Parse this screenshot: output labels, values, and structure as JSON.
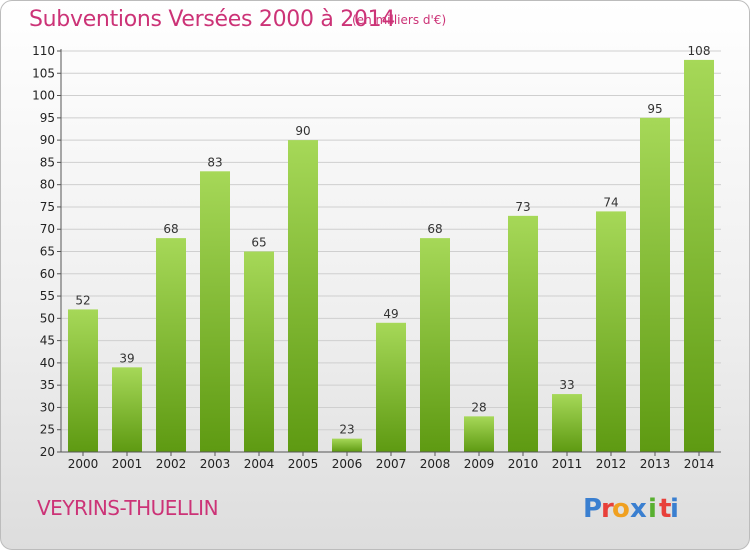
{
  "header": {
    "title": "Subventions Versées 2000 à 2014",
    "subtitle": "(en milliers d'€)"
  },
  "footer": {
    "place": "VEYRINS-THUELLIN",
    "logo_text": "Proxiti",
    "logo_letters": [
      "P",
      "r",
      "o",
      "x",
      "i",
      "t",
      "i"
    ],
    "logo_colors": [
      "#3a7fd0",
      "#e8403a",
      "#f0a020",
      "#3a7fd0",
      "#58b030",
      "#e8403a",
      "#3a7fd0"
    ]
  },
  "colors": {
    "bar_light": "#a6d858",
    "bar_dark": "#5e9a12",
    "title": "#cc3377",
    "grid": "#cfcfcf"
  },
  "chart_data": {
    "type": "bar",
    "title": "Subventions Versées 2000 à 2014",
    "subtitle": "(en milliers d'€)",
    "categories": [
      "2000",
      "2001",
      "2002",
      "2003",
      "2004",
      "2005",
      "2006",
      "2007",
      "2008",
      "2009",
      "2010",
      "2011",
      "2012",
      "2013",
      "2014"
    ],
    "values": [
      52,
      39,
      68,
      83,
      65,
      90,
      23,
      49,
      68,
      28,
      73,
      33,
      74,
      95,
      108
    ],
    "ylim": [
      20,
      110
    ],
    "yticks": [
      20,
      25,
      30,
      35,
      40,
      45,
      50,
      55,
      60,
      65,
      70,
      75,
      80,
      85,
      90,
      95,
      100,
      105,
      110
    ],
    "grid": true,
    "xlabel": "",
    "ylabel": ""
  }
}
